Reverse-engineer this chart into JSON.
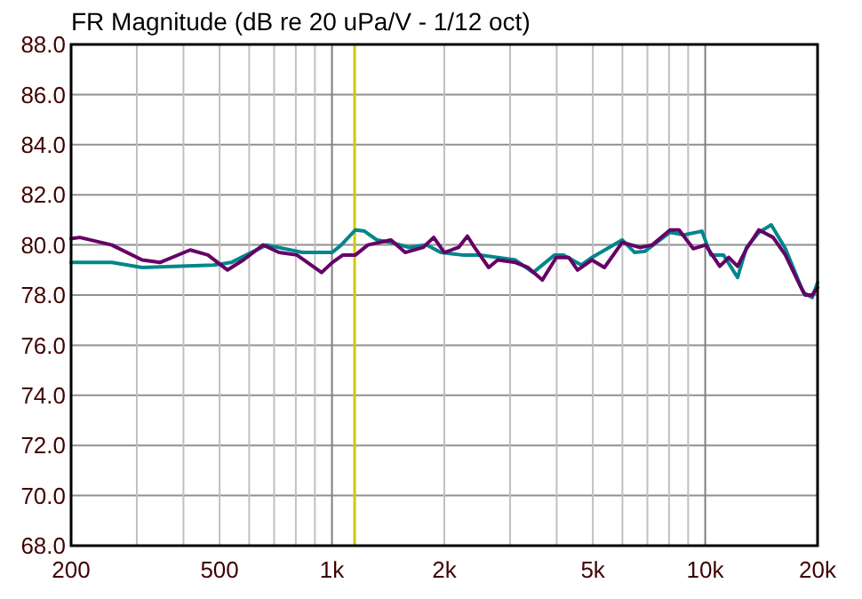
{
  "chart_data": {
    "type": "line",
    "title": "FR Magnitude (dB re 20 uPa/V - 1/12 oct)",
    "log": "x",
    "grid": true,
    "xlim": [
      200,
      20000
    ],
    "ylim": [
      68,
      88
    ],
    "xticks": [
      200,
      {
        "value": 300,
        "label": null
      },
      {
        "value": 400,
        "label": null
      },
      500,
      {
        "value": 600,
        "label": null
      },
      {
        "value": 700,
        "label": null
      },
      {
        "value": 800,
        "label": null
      },
      {
        "value": 900,
        "label": null
      },
      {
        "value": 1000,
        "label": "1k"
      },
      {
        "value": 2000,
        "label": "2k"
      },
      {
        "value": 3000,
        "label": null
      },
      {
        "value": 4000,
        "label": null
      },
      {
        "value": 5000,
        "label": "5k"
      },
      {
        "value": 6000,
        "label": null
      },
      {
        "value": 7000,
        "label": null
      },
      {
        "value": 8000,
        "label": null
      },
      {
        "value": 9000,
        "label": null
      },
      {
        "value": 10000,
        "label": "10k"
      },
      {
        "value": 20000,
        "label": "20k"
      }
    ],
    "yticks": [
      {
        "value": 68,
        "label": "68.0"
      },
      {
        "value": 70,
        "label": "70.0"
      },
      {
        "value": 72,
        "label": "72.0"
      },
      {
        "value": 74,
        "label": "74.0"
      },
      {
        "value": 76,
        "label": "76.0"
      },
      {
        "value": 78,
        "label": "78.0"
      },
      {
        "value": 80,
        "label": "80.0"
      },
      {
        "value": 82,
        "label": "82.0"
      },
      {
        "value": 84,
        "label": "84.0"
      },
      {
        "value": 86,
        "label": "86.0"
      },
      {
        "value": 88,
        "label": "88.0"
      }
    ],
    "ref_lines": [
      {
        "axis": "x",
        "value": 1150,
        "color": "#d4c800"
      }
    ],
    "series": [
      {
        "color": "#00868b",
        "x": [
          200,
          257,
          310,
          481,
          537,
          668,
          832,
          1002,
          1059,
          1156,
          1222,
          1318,
          1439,
          1607,
          1792,
          1956,
          2233,
          2490,
          2780,
          3100,
          3460,
          3950,
          4170,
          4660,
          4970,
          5990,
          6470,
          6900,
          8050,
          8790,
          9800,
          10350,
          11190,
          12210,
          12900,
          13930,
          15030,
          16400,
          18330,
          19350,
          20000
        ],
        "values": [
          79.3,
          79.3,
          79.1,
          79.2,
          79.3,
          80.0,
          79.7,
          79.7,
          80.0,
          80.6,
          80.55,
          80.2,
          80.1,
          79.9,
          80.0,
          79.7,
          79.6,
          79.6,
          79.5,
          79.4,
          78.9,
          79.6,
          79.6,
          79.2,
          79.5,
          80.2,
          79.7,
          79.75,
          80.5,
          80.4,
          80.55,
          79.6,
          79.6,
          78.7,
          79.9,
          80.5,
          80.8,
          79.85,
          78.1,
          77.9,
          78.5
        ]
      },
      {
        "color": "#660066",
        "x": [
          200,
          211,
          257,
          310,
          346,
          417,
          465,
          525,
          579,
          654,
          721,
          805,
          860,
          938,
          1002,
          1070,
          1156,
          1248,
          1439,
          1571,
          1754,
          1873,
          2000,
          2183,
          2306,
          2410,
          2630,
          2780,
          3100,
          3350,
          3660,
          3990,
          4310,
          4550,
          4970,
          5370,
          5990,
          6680,
          7210,
          8050,
          8510,
          9290,
          10020,
          10940,
          11560,
          12210,
          12900,
          13930,
          15200,
          16400,
          17920,
          18530,
          19350,
          20000
        ],
        "values": [
          80.25,
          80.3,
          80.0,
          79.4,
          79.3,
          79.8,
          79.6,
          79.0,
          79.4,
          80.0,
          79.7,
          79.6,
          79.3,
          78.9,
          79.3,
          79.6,
          79.6,
          80.0,
          80.2,
          79.7,
          79.9,
          80.3,
          79.7,
          79.9,
          80.35,
          79.9,
          79.1,
          79.4,
          79.3,
          79.1,
          78.6,
          79.5,
          79.5,
          79.0,
          79.4,
          79.1,
          80.1,
          79.9,
          80.0,
          80.6,
          80.6,
          79.85,
          80.0,
          79.15,
          79.5,
          79.15,
          79.85,
          80.6,
          80.3,
          79.6,
          78.4,
          78.0,
          78.0,
          78.3
        ]
      }
    ]
  }
}
